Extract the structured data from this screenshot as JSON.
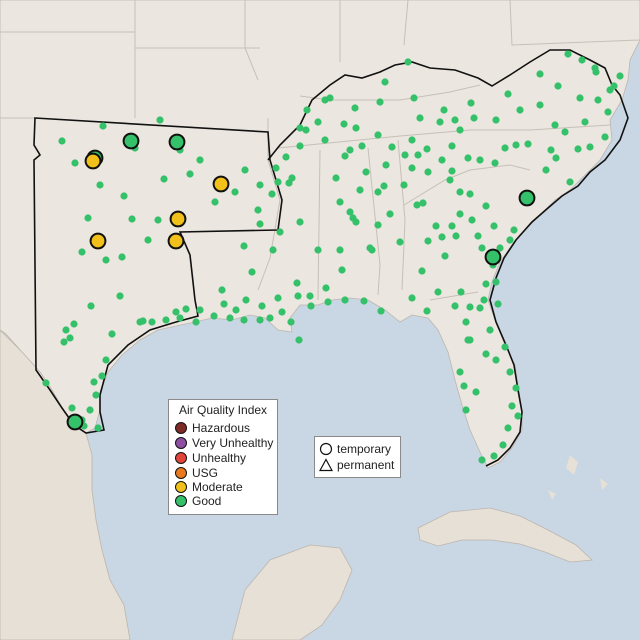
{
  "map": {
    "colors": {
      "ocean": "#c9d6e3",
      "land": "#ebe6df",
      "border": "#c2bcb3",
      "region_outline": "#000000"
    }
  },
  "aqi_legend": {
    "title": "Air Quality Index",
    "items": [
      {
        "label": "Hazardous",
        "color": "#7e2a26"
      },
      {
        "label": "Very Unhealthy",
        "color": "#8e4fa3"
      },
      {
        "label": "Unhealthy",
        "color": "#e0443a"
      },
      {
        "label": "USG",
        "color": "#e8791e"
      },
      {
        "label": "Moderate",
        "color": "#f2c01a"
      },
      {
        "label": "Good",
        "color": "#35c06a"
      }
    ]
  },
  "type_legend": {
    "items": [
      {
        "label": "temporary",
        "shape": "circle-icon"
      },
      {
        "label": "permanent",
        "shape": "triangle-icon"
      }
    ]
  },
  "monitors_featured": [
    {
      "category": "Good"
    },
    {
      "category": "Good"
    },
    {
      "category": "Good"
    },
    {
      "category": "Good"
    },
    {
      "category": "Good"
    },
    {
      "category": "Good"
    },
    {
      "category": "Moderate"
    },
    {
      "category": "Moderate"
    },
    {
      "category": "Moderate"
    },
    {
      "category": "Moderate"
    },
    {
      "category": "Moderate"
    }
  ]
}
